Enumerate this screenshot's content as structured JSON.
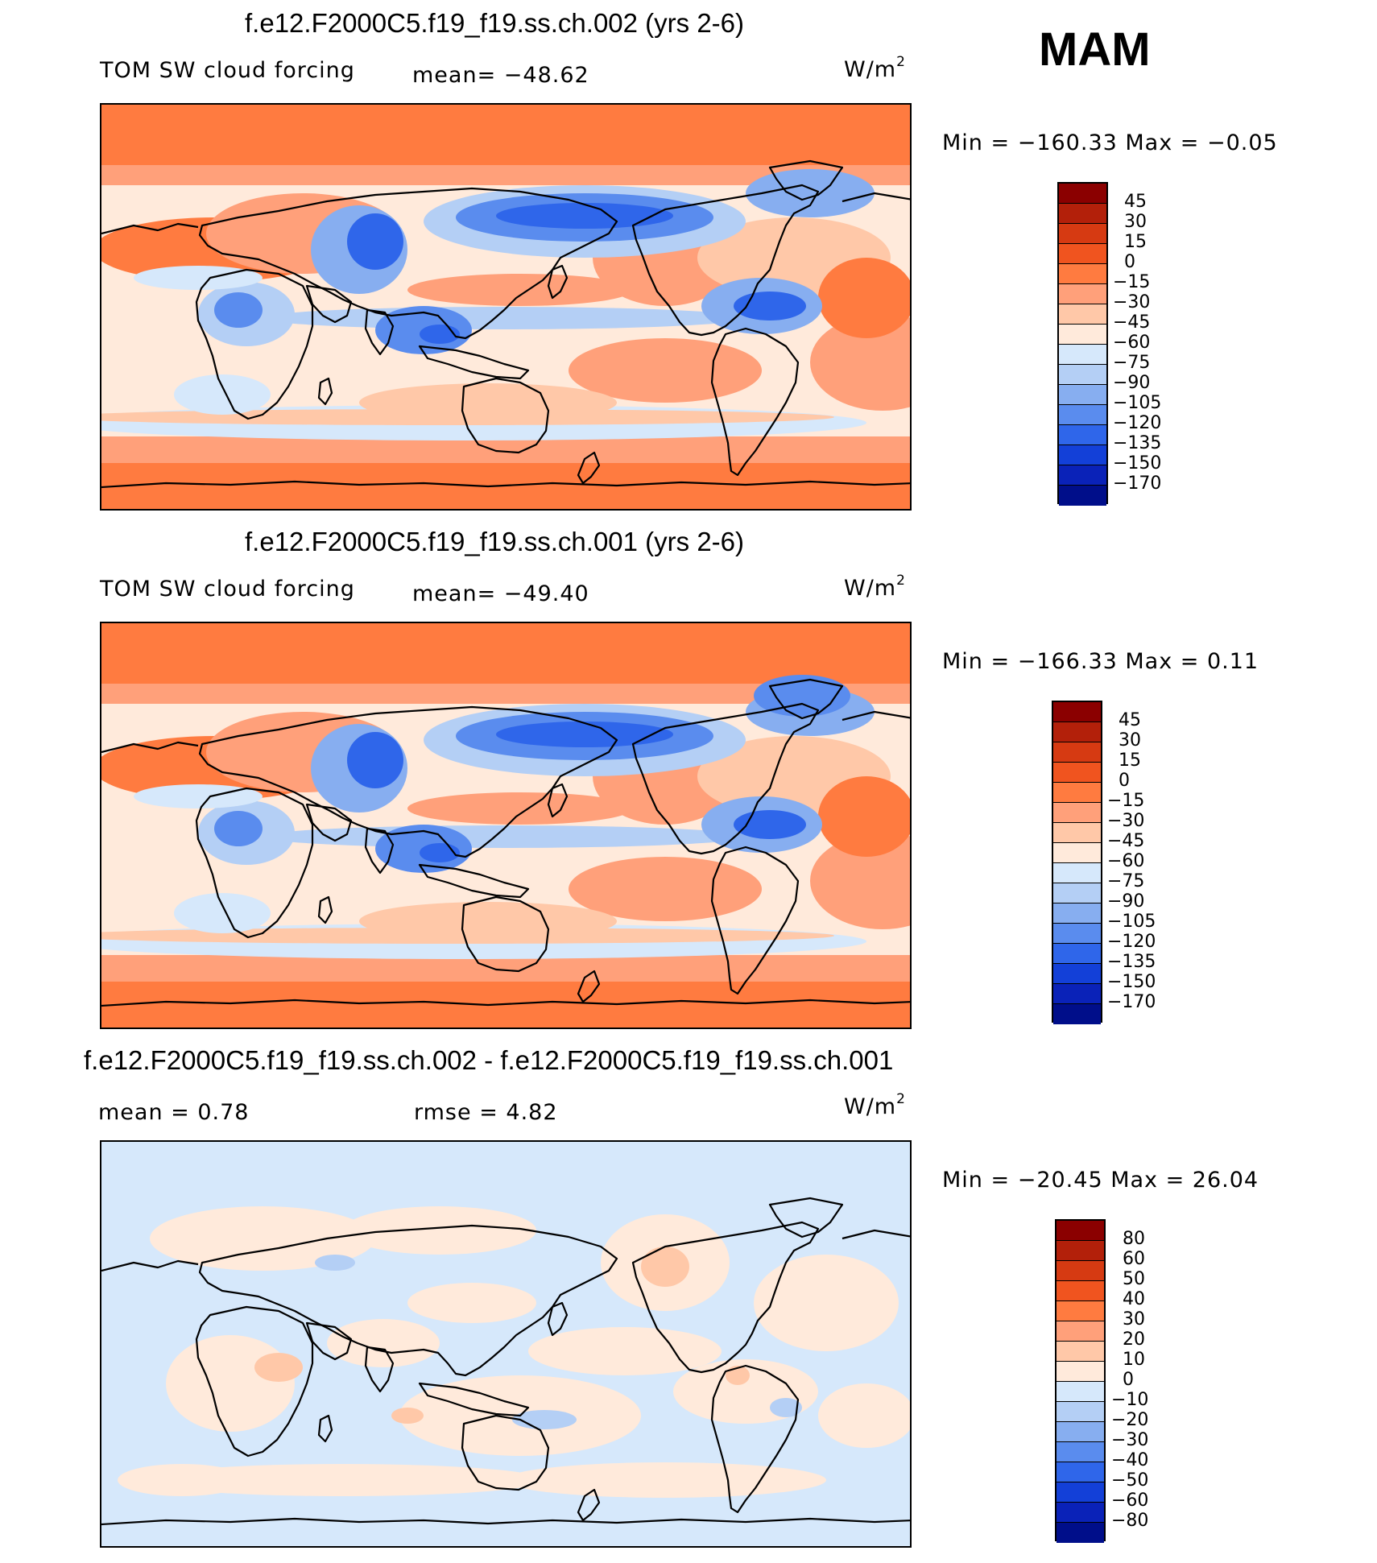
{
  "season": "MAM",
  "units_text": "W/m",
  "units_sup": "2",
  "panels": [
    {
      "title": "f.e12.F2000C5.f19_f19.ss.ch.002 (yrs 2-6)",
      "variable": "TOM SW cloud forcing",
      "stat_text": "mean= −48.62",
      "minmax_text": "Min = −160.33 Max =  −0.05",
      "colorbar_labels": [
        "45",
        "30",
        "15",
        "0",
        "−15",
        "−30",
        "−45",
        "−60",
        "−75",
        "−90",
        "−105",
        "−120",
        "−135",
        "−150",
        "−170"
      ]
    },
    {
      "title": "f.e12.F2000C5.f19_f19.ss.ch.001 (yrs 2-6)",
      "variable": "TOM SW cloud forcing",
      "stat_text": "mean= −49.40",
      "minmax_text": "Min = −166.33 Max =   0.11",
      "colorbar_labels": [
        "45",
        "30",
        "15",
        "0",
        "−15",
        "−30",
        "−45",
        "−60",
        "−75",
        "−90",
        "−105",
        "−120",
        "−135",
        "−150",
        "−170"
      ]
    },
    {
      "title": "f.e12.F2000C5.f19_f19.ss.ch.002 - f.e12.F2000C5.f19_f19.ss.ch.001",
      "mean_text": "mean =    0.78",
      "rmse_text": "rmse =    4.82",
      "minmax_text": "Min = −20.45 Max =  26.04",
      "colorbar_labels": [
        "80",
        "60",
        "50",
        "40",
        "30",
        "20",
        "10",
        "0",
        "−10",
        "−20",
        "−30",
        "−40",
        "−50",
        "−60",
        "−80"
      ]
    }
  ],
  "colorbar_colors": [
    "#8b0000",
    "#b3200a",
    "#d63a12",
    "#f0541f",
    "#ff7b40",
    "#ffa07a",
    "#ffc8a8",
    "#ffeadb",
    "#d6e8fb",
    "#b4cff5",
    "#87aef0",
    "#5a8cee",
    "#2f66ea",
    "#1340d8",
    "#0a22b8",
    "#000e8a"
  ],
  "map_colors": {
    "polar": "#ff7b40",
    "mid": "#ffa07a",
    "light": "#ffc8a8",
    "pale": "#ffeadb",
    "lightblue": "#d6e8fb",
    "blue1": "#b4cff5",
    "blue2": "#87aef0",
    "blue3": "#5a8cee",
    "blue4": "#2f66ea",
    "diffbg": "#d6e8fb",
    "diffwarm": "#ffeadb",
    "diffwarm2": "#ffc8a8"
  }
}
